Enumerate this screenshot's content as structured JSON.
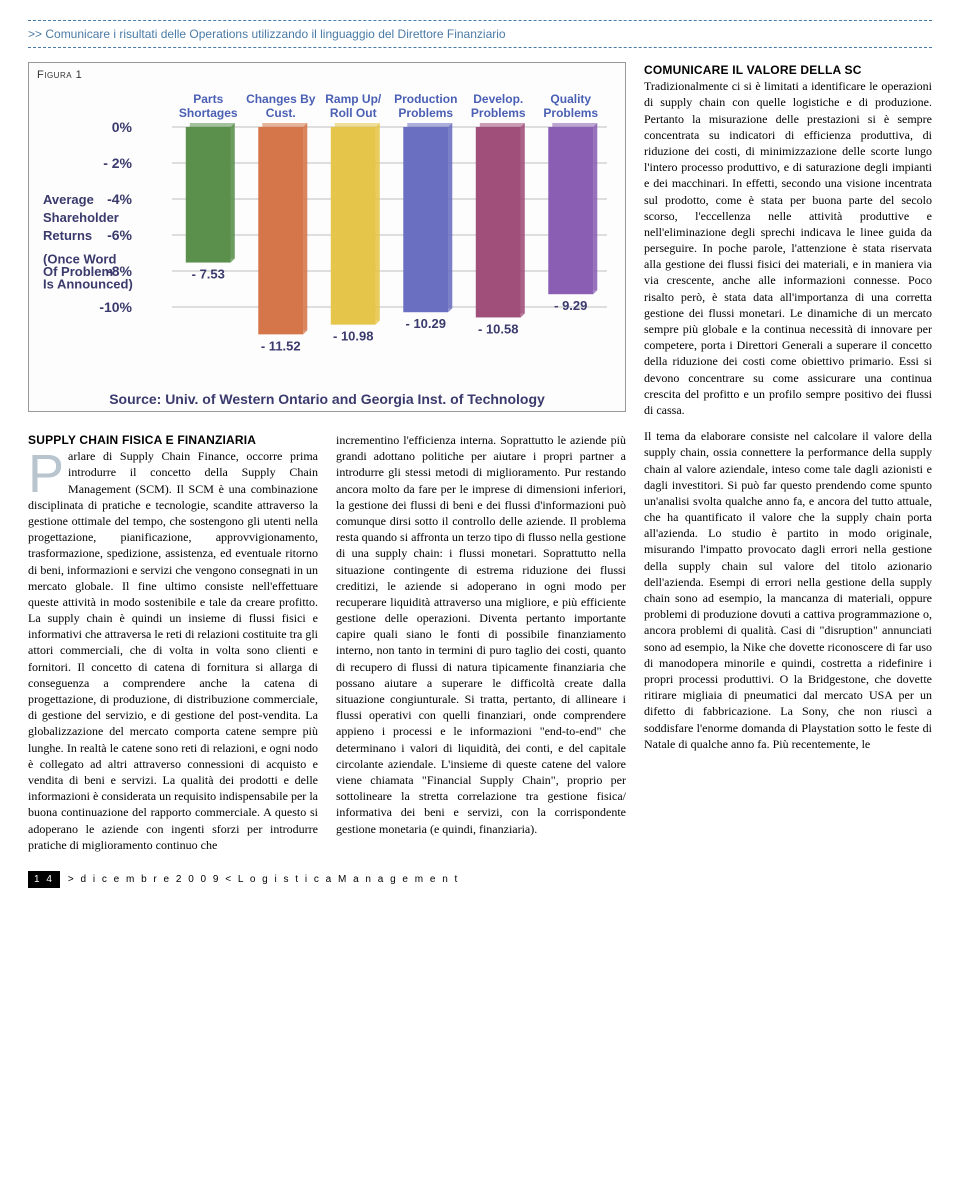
{
  "header": {
    "text": ">> Comunicare i risultati delle Operations utilizzando il linguaggio del Direttore Finanziario"
  },
  "figure": {
    "label": "Figura 1",
    "type": "bar",
    "categories": [
      "Parts Shortages",
      "Changes By Cust.",
      "Ramp Up/ Roll Out",
      "Production Problems",
      "Develop. Problems",
      "Quality Problems"
    ],
    "values": [
      -7.53,
      -11.52,
      -10.98,
      -10.29,
      -10.58,
      -9.29
    ],
    "bar_colors": [
      "#5a8f4c",
      "#d4764a",
      "#e6c64a",
      "#6a6fc1",
      "#a04f7a",
      "#8a5fb3"
    ],
    "y_axis_label_left": "Average Shareholder Returns (Once Word Of Problem Is Announced)",
    "y_ticks": [
      "0%",
      "- 2%",
      "-4%",
      "-6%",
      "-8%",
      "-10%"
    ],
    "y_tick_values": [
      0,
      -2,
      -4,
      -6,
      -8,
      -10
    ],
    "ylim": [
      -12,
      0
    ],
    "background_color": "#fdfdfd",
    "grid_color": "#bfbfbf",
    "cat_label_color": "#4a5fb3",
    "axis_label_color": "#3a3a6d",
    "source": "Source: Univ. of Western Ontario and Georgia Inst. of Technology"
  },
  "col1": {
    "title": "SUPPLY CHAIN FISICA E FINANZIARIA",
    "dropcap": "P",
    "lead": "arlare di Supply Chain Finance, occorre prima introdurre il concetto della Supply Chain Management (SCM). Il SCM è una combinazione disciplinata di pratiche e tecnologie, scandite attraverso la gestione ottimale del tempo, che sostengono gli utenti nella progettazione, pianificazione, approvvigionamento, trasformazione, spedizione, assistenza, ed eventuale ritorno di beni, informazioni e servizi che vengono consegnati in un mercato globale. Il fine ultimo consiste nell'effettuare queste attività in modo sostenibile e tale da creare profitto. La supply chain è quindi un insieme di flussi fisici e informativi che attraversa le reti di relazioni costituite tra gli attori commerciali, che di volta in volta sono clienti e fornitori. Il concetto di catena di fornitura si allarga di conseguenza a comprendere anche la catena di progettazione, di produzione, di distribuzione commerciale, di gestione del servizio, e di gestione del post-vendita. La globalizzazione del mercato comporta catene sempre più lunghe. In realtà le catene sono reti di relazioni, e ogni nodo è collegato ad altri attraverso connessioni di acquisto e vendita di beni e servizi. La qualità dei prodotti e delle informazioni è considerata un requisito indispensabile per la buona continuazione del rapporto commerciale. A questo si adoperano le aziende con ingenti sforzi per introdurre pratiche di miglioramento continuo che"
  },
  "col2": {
    "text": "incrementino l'efficienza interna. Soprattutto le aziende più grandi adottano politiche per aiutare i propri partner a introdurre gli stessi metodi di miglioramento. Pur restando ancora molto da fare per le imprese di dimensioni inferiori, la gestione dei flussi di beni e dei flussi d'informazioni può comunque dirsi sotto il controllo delle aziende. Il problema resta quando si affronta un terzo tipo di flusso nella gestione di una supply chain: i flussi monetari. Soprattutto nella situazione contingente di estrema riduzione dei flussi creditizi, le aziende si adoperano in ogni modo per recuperare liquidità attraverso una migliore, e più efficiente gestione delle operazioni. Diventa pertanto importante capire quali siano le fonti di possibile finanziamento interno, non tanto in termini di puro taglio dei costi, quanto di recupero di flussi di natura tipicamente finanziaria che possano aiutare a superare le difficoltà create dalla situazione congiunturale. Si tratta, pertanto, di allineare i flussi operativi con quelli finanziari, onde comprendere appieno i processi e le informazioni \"end-to-end\" che determinano i valori di liquidità, dei conti, e del capitale circolante aziendale. L'insieme di queste catene del valore viene chiamata \"Financial Supply Chain\", proprio per sottolineare la stretta correlazione tra gestione fisica/ informativa dei beni e servizi, con la corrispondente gestione monetaria (e quindi, finanziaria)."
  },
  "col3": {
    "title": "COMUNICARE IL VALORE DELLA SC",
    "p1": "Tradizionalmente ci si è limitati a identificare le operazioni di supply chain con quelle logistiche e di produzione. Pertanto la misurazione delle prestazioni si è sempre concentrata su indicatori di efficienza produttiva, di riduzione dei costi, di minimizzazione delle scorte lungo l'intero processo produttivo, e di saturazione degli impianti e dei macchinari. In effetti, secondo una visione incentrata sul prodotto, come è stata per buona parte del secolo scorso, l'eccellenza nelle attività produttive e nell'eliminazione degli sprechi indicava le linee guida da perseguire. In poche parole, l'attenzione è stata riservata alla gestione dei flussi fisici dei materiali, e in maniera via via crescente, anche alle informazioni connesse. Poco risalto però, è stata data all'importanza di una corretta gestione dei flussi monetari. Le dinamiche di un mercato sempre più globale e la continua necessità di innovare per competere, porta i Direttori Generali a superare il concetto della riduzione dei costi come obiettivo primario. Essi si devono concentrare su come assicurare una continua crescita del profitto e un profilo sempre positivo dei flussi di cassa.",
    "p2": "Il tema da elaborare consiste nel calcolare il valore della supply chain, ossia connettere la performance della supply chain al valore aziendale, inteso come tale dagli azionisti e dagli investitori. Si può far questo prendendo come spunto un'analisi svolta qualche anno fa, e ancora del tutto attuale, che ha quantificato il valore che la supply chain porta all'azienda. Lo studio è partito in modo originale, misurando l'impatto provocato dagli errori nella gestione della supply chain sul valore del titolo azionario dell'azienda. Esempi di errori nella gestione della supply chain sono ad esempio, la mancanza di materiali, oppure problemi di produzione dovuti a cattiva programmazione o, ancora problemi di qualità. Casi di \"disruption\" annunciati sono ad esempio, la Nike che dovette riconoscere di far uso di manodopera minorile e quindi, costretta a ridefinire i propri processi produttivi. O la Bridgestone, che dovette ritirare migliaia di pneumatici dal mercato USA per un difetto di fabbricazione. La Sony, che non riuscì a soddisfare l'enorme domanda di Playstation sotto le feste di Natale di qualche anno fa. Più recentemente, le"
  },
  "footer": {
    "page": "1 4",
    "text": "> d i c e m b r e  2 0 0 9 <  L o g i s t i c a  M a n a g e m e n t"
  }
}
